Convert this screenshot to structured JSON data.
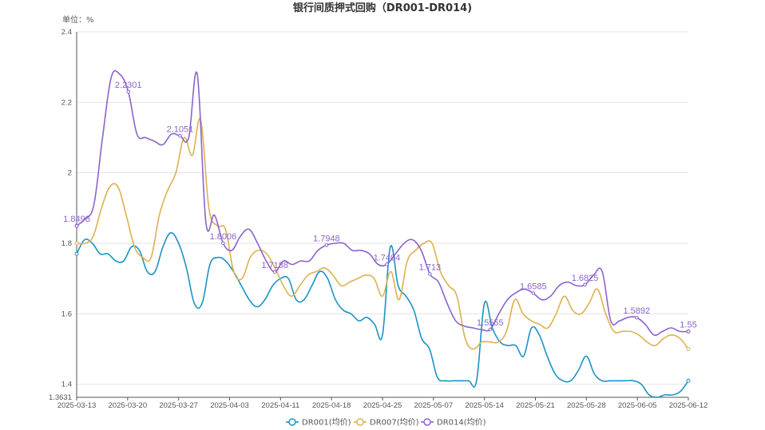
{
  "chart_data": {
    "type": "line",
    "title": "银行间质押式回购（DR001-DR014)",
    "unit_label": "单位：%",
    "y_ticks": [
      "2.4",
      "2.2",
      "2",
      "1.8",
      "1.6",
      "1.4"
    ],
    "y_min_label": "1.3631",
    "ylim": [
      1.3631,
      2.4
    ],
    "x_ticks": [
      "2025-03-13",
      "2025-03-20",
      "2025-03-27",
      "2025-04-03",
      "2025-04-11",
      "2025-04-18",
      "2025-04-25",
      "2025-05-07",
      "2025-05-14",
      "2025-05-21",
      "2025-05-28",
      "2025-06-05",
      "2025-06-12"
    ],
    "grid": true,
    "legend_position": "bottom",
    "series": [
      {
        "name": "DR001(均价)",
        "color": "#1a93c4",
        "values": [
          1.77,
          1.81,
          1.8,
          1.77,
          1.77,
          1.75,
          1.75,
          1.79,
          1.78,
          1.72,
          1.72,
          1.79,
          1.83,
          1.8,
          1.73,
          1.63,
          1.63,
          1.74,
          1.76,
          1.75,
          1.72,
          1.68,
          1.64,
          1.62,
          1.64,
          1.68,
          1.7,
          1.7,
          1.64,
          1.64,
          1.68,
          1.72,
          1.7,
          1.64,
          1.61,
          1.6,
          1.58,
          1.59,
          1.57,
          1.54,
          1.79,
          1.68,
          1.65,
          1.61,
          1.53,
          1.5,
          1.42,
          1.41,
          1.41,
          1.41,
          1.41,
          1.41,
          1.63,
          1.56,
          1.52,
          1.51,
          1.51,
          1.48,
          1.56,
          1.54,
          1.48,
          1.43,
          1.41,
          1.41,
          1.44,
          1.48,
          1.43,
          1.41,
          1.41,
          1.41,
          1.41,
          1.41,
          1.4,
          1.37,
          1.3631,
          1.37,
          1.37,
          1.38,
          1.41
        ]
      },
      {
        "name": "DR007(均价)",
        "color": "#ddb14f",
        "values": [
          1.8,
          1.8,
          1.82,
          1.9,
          1.96,
          1.96,
          1.88,
          1.79,
          1.76,
          1.76,
          1.88,
          1.95,
          2.0,
          2.1,
          2.05,
          2.15,
          1.9,
          1.85,
          1.84,
          1.72,
          1.7,
          1.76,
          1.78,
          1.77,
          1.73,
          1.68,
          1.65,
          1.68,
          1.71,
          1.72,
          1.73,
          1.71,
          1.68,
          1.69,
          1.7,
          1.71,
          1.7,
          1.65,
          1.72,
          1.64,
          1.75,
          1.78,
          1.8,
          1.8,
          1.72,
          1.68,
          1.65,
          1.53,
          1.5,
          1.52,
          1.52,
          1.52,
          1.55,
          1.64,
          1.6,
          1.58,
          1.57,
          1.56,
          1.6,
          1.65,
          1.61,
          1.6,
          1.63,
          1.67,
          1.6,
          1.55,
          1.55,
          1.55,
          1.54,
          1.52,
          1.51,
          1.53,
          1.54,
          1.53,
          1.5
        ]
      },
      {
        "name": "DR014(均价)",
        "color": "#8c63cc",
        "values": [
          1.8498,
          1.87,
          1.91,
          2.1,
          2.27,
          2.28,
          2.2301,
          2.11,
          2.1,
          2.09,
          2.08,
          2.11,
          2.1051,
          2.1,
          2.28,
          1.86,
          1.88,
          1.8006,
          1.78,
          1.82,
          1.84,
          1.8,
          1.75,
          1.7188,
          1.75,
          1.74,
          1.75,
          1.75,
          1.78,
          1.7948,
          1.8,
          1.8,
          1.78,
          1.78,
          1.77,
          1.74,
          1.7404,
          1.77,
          1.8,
          1.81,
          1.78,
          1.713,
          1.69,
          1.63,
          1.58,
          1.565,
          1.56,
          1.555,
          1.5555,
          1.6,
          1.64,
          1.66,
          1.67,
          1.6585,
          1.64,
          1.65,
          1.68,
          1.69,
          1.68,
          1.6825,
          1.71,
          1.72,
          1.58,
          1.58,
          1.59,
          1.5892,
          1.57,
          1.54,
          1.55,
          1.56,
          1.55,
          1.55
        ]
      }
    ],
    "data_labels": [
      {
        "series": 2,
        "index": 0,
        "text": "1.8498"
      },
      {
        "series": 2,
        "index": 6,
        "text": "2.2301"
      },
      {
        "series": 2,
        "index": 12,
        "text": "2.1051"
      },
      {
        "series": 2,
        "index": 17,
        "text": "1.8006"
      },
      {
        "series": 2,
        "index": 23,
        "text": "1.7188"
      },
      {
        "series": 2,
        "index": 29,
        "text": "1.7948"
      },
      {
        "series": 2,
        "index": 36,
        "text": "1.7404"
      },
      {
        "series": 2,
        "index": 41,
        "text": "1.713"
      },
      {
        "series": 2,
        "index": 48,
        "text": "1.5555"
      },
      {
        "series": 2,
        "index": 53,
        "text": "1.6585"
      },
      {
        "series": 2,
        "index": 59,
        "text": "1.6825"
      },
      {
        "series": 2,
        "index": 65,
        "text": "1.5892"
      },
      {
        "series": 2,
        "index": 71,
        "text": "1.55"
      }
    ]
  }
}
